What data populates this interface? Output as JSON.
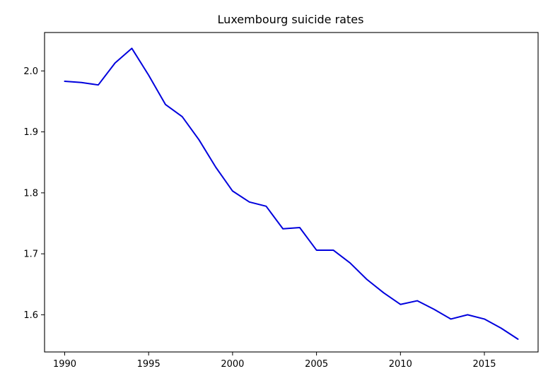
{
  "chart_data": {
    "type": "line",
    "title": "Luxembourg suicide rates",
    "xlabel": "",
    "ylabel": "",
    "xlim": [
      1988.8,
      2018.2
    ],
    "ylim": [
      1.539,
      2.063
    ],
    "x_ticks": [
      1990,
      1995,
      2000,
      2005,
      2010,
      2015
    ],
    "y_ticks": [
      1.6,
      1.7,
      1.8,
      1.9,
      2.0
    ],
    "y_tick_labels": [
      "1.6",
      "1.7",
      "1.8",
      "1.9",
      "2.0"
    ],
    "grid": false,
    "series": [
      {
        "color": "#0000dd",
        "x": [
          1990,
          1991,
          1992,
          1993,
          1994,
          1995,
          1996,
          1997,
          1998,
          1999,
          2000,
          2001,
          2002,
          2003,
          2004,
          2005,
          2006,
          2007,
          2008,
          2009,
          2010,
          2011,
          2012,
          2013,
          2014,
          2015,
          2016,
          2017
        ],
        "y": [
          1.983,
          1.981,
          1.977,
          2.013,
          2.037,
          1.993,
          1.945,
          1.925,
          1.887,
          1.842,
          1.803,
          1.785,
          1.778,
          1.741,
          1.743,
          1.706,
          1.706,
          1.685,
          1.658,
          1.636,
          1.617,
          1.623,
          1.609,
          1.593,
          1.6,
          1.593,
          1.578,
          1.56
        ]
      }
    ]
  }
}
